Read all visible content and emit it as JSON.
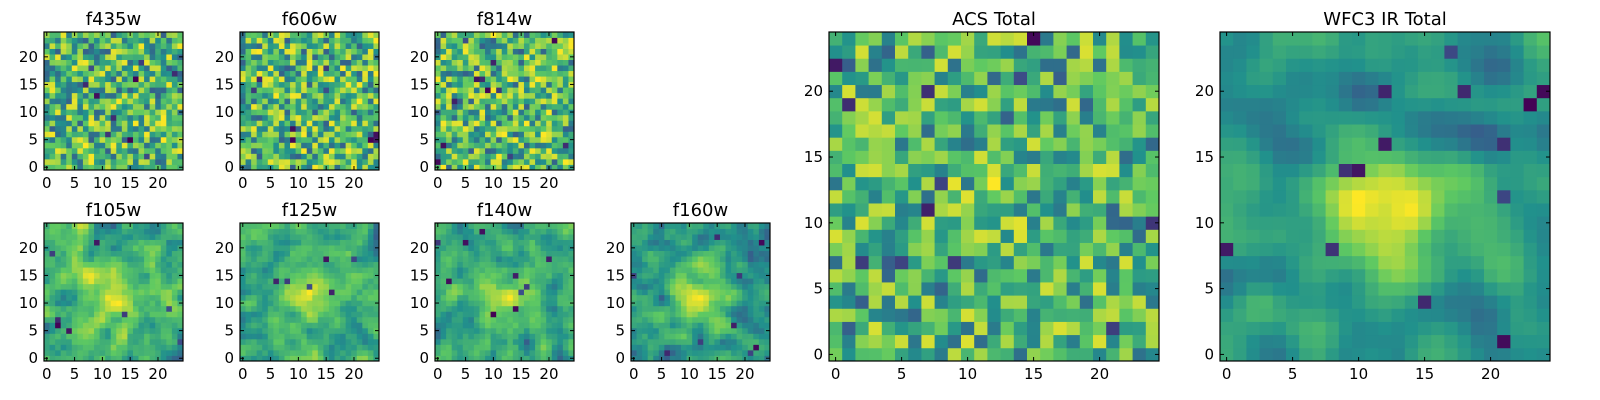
{
  "figure": {
    "description_hidden": false
  },
  "colors": {
    "viridis_stops": [
      "#440154",
      "#3b528b",
      "#21918c",
      "#5ec962",
      "#fde725"
    ],
    "frame": "#000000"
  },
  "chart_data": [
    {
      "id": "f435w",
      "type": "heatmap",
      "title": "f435w",
      "grid_size": 25,
      "xticks": [
        "0",
        "5",
        "10",
        "15",
        "20"
      ],
      "yticks": [
        "0",
        "5",
        "10",
        "15",
        "20"
      ],
      "xlim": [
        0,
        25
      ],
      "ylim": [
        0,
        25
      ],
      "seed": 11,
      "smooth": 0,
      "center_bump": 0,
      "dark_spots": 10
    },
    {
      "id": "f606w",
      "type": "heatmap",
      "title": "f606w",
      "grid_size": 25,
      "xticks": [
        "0",
        "5",
        "10",
        "15",
        "20"
      ],
      "yticks": [
        "0",
        "5",
        "10",
        "15",
        "20"
      ],
      "xlim": [
        0,
        25
      ],
      "ylim": [
        0,
        25
      ],
      "seed": 23,
      "smooth": 0,
      "center_bump": 0,
      "dark_spots": 9
    },
    {
      "id": "f814w",
      "type": "heatmap",
      "title": "f814w",
      "grid_size": 25,
      "xticks": [
        "0",
        "5",
        "10",
        "15",
        "20"
      ],
      "yticks": [
        "0",
        "5",
        "10",
        "15",
        "20"
      ],
      "xlim": [
        0,
        25
      ],
      "ylim": [
        0,
        25
      ],
      "seed": 37,
      "smooth": 0,
      "center_bump": 0,
      "dark_spots": 12
    },
    {
      "id": "f105w",
      "type": "heatmap",
      "title": "f105w",
      "grid_size": 25,
      "xticks": [
        "0",
        "5",
        "10",
        "15",
        "20"
      ],
      "yticks": [
        "0",
        "5",
        "10",
        "15",
        "20"
      ],
      "xlim": [
        0,
        25
      ],
      "ylim": [
        0,
        25
      ],
      "seed": 41,
      "smooth": 1,
      "center_bump": 0.35,
      "dark_spots": 8
    },
    {
      "id": "f125w",
      "type": "heatmap",
      "title": "f125w",
      "grid_size": 25,
      "xticks": [
        "0",
        "5",
        "10",
        "15",
        "20"
      ],
      "yticks": [
        "0",
        "5",
        "10",
        "15",
        "20"
      ],
      "xlim": [
        0,
        25
      ],
      "ylim": [
        0,
        25
      ],
      "seed": 53,
      "smooth": 1,
      "center_bump": 0.35,
      "dark_spots": 7
    },
    {
      "id": "f140w",
      "type": "heatmap",
      "title": "f140w",
      "grid_size": 25,
      "xticks": [
        "0",
        "5",
        "10",
        "15",
        "20"
      ],
      "yticks": [
        "0",
        "5",
        "10",
        "15",
        "20"
      ],
      "xlim": [
        0,
        25
      ],
      "ylim": [
        0,
        25
      ],
      "seed": 67,
      "smooth": 1,
      "center_bump": 0.3,
      "dark_spots": 10
    },
    {
      "id": "f160w",
      "type": "heatmap",
      "title": "f160w",
      "grid_size": 25,
      "xticks": [
        "0",
        "5",
        "10",
        "15",
        "20"
      ],
      "yticks": [
        "0",
        "5",
        "10",
        "15",
        "20"
      ],
      "xlim": [
        0,
        25
      ],
      "ylim": [
        0,
        25
      ],
      "seed": 71,
      "smooth": 1,
      "center_bump": 0.4,
      "dark_spots": 9
    },
    {
      "id": "acs_total",
      "type": "heatmap",
      "title": "ACS Total",
      "grid_size": 25,
      "xticks": [
        "0",
        "5",
        "10",
        "15",
        "20"
      ],
      "yticks": [
        "0",
        "5",
        "10",
        "15",
        "20"
      ],
      "xlim": [
        0,
        25
      ],
      "ylim": [
        0,
        25
      ],
      "seed": 83,
      "smooth": 0,
      "center_bump": 0.1,
      "dark_spots": 12
    },
    {
      "id": "wfc3_ir_total",
      "type": "heatmap",
      "title": "WFC3 IR Total",
      "grid_size": 25,
      "xticks": [
        "0",
        "5",
        "10",
        "15",
        "20"
      ],
      "yticks": [
        "0",
        "5",
        "10",
        "15",
        "20"
      ],
      "xlim": [
        0,
        25
      ],
      "ylim": [
        0,
        25
      ],
      "seed": 97,
      "smooth": 2,
      "center_bump": 0.55,
      "dark_spots": 14
    }
  ]
}
